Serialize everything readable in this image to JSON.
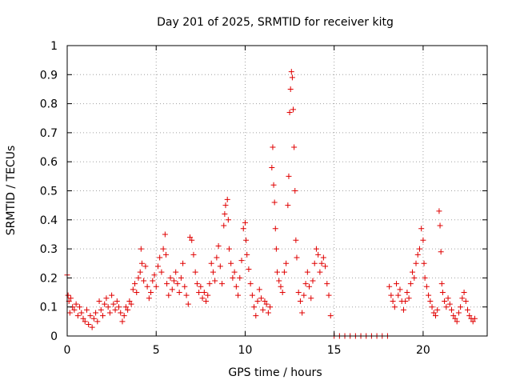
{
  "chart_data": {
    "type": "scatter",
    "title": "Day 201 of 2025, SRMTID for receiver kitg",
    "xlabel": "GPS time / hours",
    "ylabel": "SRMTID / TECUs",
    "xlim": [
      0,
      23.6
    ],
    "ylim": [
      0,
      1
    ],
    "xticks": [
      0,
      5,
      10,
      15,
      20
    ],
    "yticks": [
      0,
      0.1,
      0.2,
      0.3,
      0.4,
      0.5,
      0.6,
      0.7,
      0.8,
      0.9,
      1
    ],
    "xtick_labels": [
      "0",
      "5",
      "10",
      "15",
      "20"
    ],
    "ytick_labels": [
      "0",
      "0.1",
      "0.2",
      "0.3",
      "0.4",
      "0.5",
      "0.6",
      "0.7",
      "0.8",
      "0.9",
      "1"
    ],
    "marker": "+",
    "color": "#e00000",
    "grid": true,
    "series": [
      {
        "name": "SRMTID",
        "points": [
          [
            0.0,
            0.21
          ],
          [
            0.05,
            0.14
          ],
          [
            0.1,
            0.12
          ],
          [
            0.15,
            0.08
          ],
          [
            0.2,
            0.13
          ],
          [
            0.3,
            0.1
          ],
          [
            0.4,
            0.09
          ],
          [
            0.5,
            0.11
          ],
          [
            0.6,
            0.07
          ],
          [
            0.7,
            0.1
          ],
          [
            0.8,
            0.08
          ],
          [
            0.9,
            0.06
          ],
          [
            1.0,
            0.05
          ],
          [
            1.1,
            0.09
          ],
          [
            1.2,
            0.04
          ],
          [
            1.3,
            0.07
          ],
          [
            1.4,
            0.03
          ],
          [
            1.5,
            0.06
          ],
          [
            1.6,
            0.08
          ],
          [
            1.7,
            0.05
          ],
          [
            1.8,
            0.12
          ],
          [
            1.9,
            0.09
          ],
          [
            2.0,
            0.07
          ],
          [
            2.1,
            0.11
          ],
          [
            2.2,
            0.13
          ],
          [
            2.3,
            0.1
          ],
          [
            2.4,
            0.08
          ],
          [
            2.5,
            0.14
          ],
          [
            2.6,
            0.11
          ],
          [
            2.7,
            0.09
          ],
          [
            2.8,
            0.12
          ],
          [
            2.9,
            0.1
          ],
          [
            3.0,
            0.08
          ],
          [
            3.1,
            0.05
          ],
          [
            3.2,
            0.07
          ],
          [
            3.3,
            0.1
          ],
          [
            3.4,
            0.09
          ],
          [
            3.5,
            0.12
          ],
          [
            3.6,
            0.11
          ],
          [
            3.7,
            0.16
          ],
          [
            3.8,
            0.18
          ],
          [
            3.9,
            0.15
          ],
          [
            4.0,
            0.2
          ],
          [
            4.1,
            0.22
          ],
          [
            4.15,
            0.3
          ],
          [
            4.2,
            0.25
          ],
          [
            4.3,
            0.19
          ],
          [
            4.4,
            0.24
          ],
          [
            4.5,
            0.17
          ],
          [
            4.6,
            0.13
          ],
          [
            4.7,
            0.15
          ],
          [
            4.8,
            0.19
          ],
          [
            4.9,
            0.21
          ],
          [
            5.0,
            0.17
          ],
          [
            5.1,
            0.24
          ],
          [
            5.2,
            0.27
          ],
          [
            5.3,
            0.22
          ],
          [
            5.4,
            0.3
          ],
          [
            5.5,
            0.35
          ],
          [
            5.55,
            0.28
          ],
          [
            5.6,
            0.18
          ],
          [
            5.7,
            0.14
          ],
          [
            5.8,
            0.2
          ],
          [
            5.9,
            0.16
          ],
          [
            6.0,
            0.19
          ],
          [
            6.1,
            0.22
          ],
          [
            6.2,
            0.18
          ],
          [
            6.3,
            0.15
          ],
          [
            6.4,
            0.2
          ],
          [
            6.5,
            0.25
          ],
          [
            6.6,
            0.17
          ],
          [
            6.7,
            0.14
          ],
          [
            6.8,
            0.11
          ],
          [
            6.9,
            0.34
          ],
          [
            7.0,
            0.33
          ],
          [
            7.1,
            0.28
          ],
          [
            7.2,
            0.22
          ],
          [
            7.3,
            0.18
          ],
          [
            7.4,
            0.15
          ],
          [
            7.5,
            0.17
          ],
          [
            7.6,
            0.13
          ],
          [
            7.7,
            0.15
          ],
          [
            7.8,
            0.12
          ],
          [
            7.9,
            0.14
          ],
          [
            8.0,
            0.18
          ],
          [
            8.1,
            0.25
          ],
          [
            8.2,
            0.22
          ],
          [
            8.3,
            0.19
          ],
          [
            8.4,
            0.27
          ],
          [
            8.5,
            0.31
          ],
          [
            8.6,
            0.24
          ],
          [
            8.7,
            0.18
          ],
          [
            8.8,
            0.38
          ],
          [
            8.85,
            0.42
          ],
          [
            8.9,
            0.45
          ],
          [
            9.0,
            0.47
          ],
          [
            9.05,
            0.4
          ],
          [
            9.1,
            0.3
          ],
          [
            9.2,
            0.25
          ],
          [
            9.3,
            0.2
          ],
          [
            9.4,
            0.22
          ],
          [
            9.5,
            0.17
          ],
          [
            9.6,
            0.14
          ],
          [
            9.7,
            0.2
          ],
          [
            9.8,
            0.26
          ],
          [
            9.9,
            0.37
          ],
          [
            10.0,
            0.39
          ],
          [
            10.05,
            0.33
          ],
          [
            10.1,
            0.28
          ],
          [
            10.2,
            0.23
          ],
          [
            10.3,
            0.18
          ],
          [
            10.4,
            0.14
          ],
          [
            10.5,
            0.1
          ],
          [
            10.6,
            0.07
          ],
          [
            10.7,
            0.12
          ],
          [
            10.8,
            0.16
          ],
          [
            10.9,
            0.13
          ],
          [
            11.0,
            0.09
          ],
          [
            11.1,
            0.12
          ],
          [
            11.2,
            0.11
          ],
          [
            11.3,
            0.08
          ],
          [
            11.4,
            0.1
          ],
          [
            11.5,
            0.58
          ],
          [
            11.55,
            0.65
          ],
          [
            11.6,
            0.52
          ],
          [
            11.65,
            0.46
          ],
          [
            11.7,
            0.37
          ],
          [
            11.75,
            0.3
          ],
          [
            11.8,
            0.22
          ],
          [
            11.9,
            0.19
          ],
          [
            12.0,
            0.17
          ],
          [
            12.1,
            0.15
          ],
          [
            12.2,
            0.22
          ],
          [
            12.3,
            0.25
          ],
          [
            12.4,
            0.45
          ],
          [
            12.45,
            0.55
          ],
          [
            12.5,
            0.77
          ],
          [
            12.55,
            0.85
          ],
          [
            12.6,
            0.91
          ],
          [
            12.65,
            0.89
          ],
          [
            12.7,
            0.78
          ],
          [
            12.75,
            0.65
          ],
          [
            12.8,
            0.5
          ],
          [
            12.85,
            0.33
          ],
          [
            12.9,
            0.27
          ],
          [
            13.0,
            0.15
          ],
          [
            13.1,
            0.12
          ],
          [
            13.2,
            0.08
          ],
          [
            13.3,
            0.14
          ],
          [
            13.4,
            0.18
          ],
          [
            13.5,
            0.22
          ],
          [
            13.6,
            0.17
          ],
          [
            13.7,
            0.13
          ],
          [
            13.8,
            0.19
          ],
          [
            13.9,
            0.25
          ],
          [
            14.0,
            0.3
          ],
          [
            14.1,
            0.28
          ],
          [
            14.2,
            0.22
          ],
          [
            14.3,
            0.25
          ],
          [
            14.4,
            0.27
          ],
          [
            14.5,
            0.24
          ],
          [
            14.6,
            0.18
          ],
          [
            14.7,
            0.14
          ],
          [
            14.8,
            0.07
          ],
          [
            15.0,
            0.0
          ],
          [
            15.3,
            0.0
          ],
          [
            15.6,
            0.0
          ],
          [
            15.9,
            0.0
          ],
          [
            16.2,
            0.0
          ],
          [
            16.5,
            0.0
          ],
          [
            16.8,
            0.0
          ],
          [
            17.1,
            0.0
          ],
          [
            17.4,
            0.0
          ],
          [
            17.7,
            0.0
          ],
          [
            18.0,
            0.0
          ],
          [
            18.1,
            0.17
          ],
          [
            18.2,
            0.14
          ],
          [
            18.3,
            0.12
          ],
          [
            18.4,
            0.1
          ],
          [
            18.5,
            0.18
          ],
          [
            18.6,
            0.14
          ],
          [
            18.7,
            0.16
          ],
          [
            18.8,
            0.12
          ],
          [
            18.9,
            0.09
          ],
          [
            19.0,
            0.12
          ],
          [
            19.1,
            0.15
          ],
          [
            19.2,
            0.13
          ],
          [
            19.3,
            0.18
          ],
          [
            19.4,
            0.22
          ],
          [
            19.5,
            0.2
          ],
          [
            19.6,
            0.25
          ],
          [
            19.7,
            0.28
          ],
          [
            19.8,
            0.3
          ],
          [
            19.9,
            0.37
          ],
          [
            20.0,
            0.33
          ],
          [
            20.05,
            0.25
          ],
          [
            20.1,
            0.2
          ],
          [
            20.2,
            0.17
          ],
          [
            20.3,
            0.14
          ],
          [
            20.4,
            0.12
          ],
          [
            20.5,
            0.1
          ],
          [
            20.6,
            0.08
          ],
          [
            20.7,
            0.07
          ],
          [
            20.8,
            0.09
          ],
          [
            20.9,
            0.43
          ],
          [
            20.95,
            0.38
          ],
          [
            21.0,
            0.29
          ],
          [
            21.05,
            0.18
          ],
          [
            21.1,
            0.15
          ],
          [
            21.2,
            0.12
          ],
          [
            21.3,
            0.1
          ],
          [
            21.4,
            0.13
          ],
          [
            21.5,
            0.11
          ],
          [
            21.6,
            0.09
          ],
          [
            21.7,
            0.07
          ],
          [
            21.8,
            0.06
          ],
          [
            21.9,
            0.05
          ],
          [
            22.0,
            0.08
          ],
          [
            22.1,
            0.1
          ],
          [
            22.2,
            0.13
          ],
          [
            22.3,
            0.15
          ],
          [
            22.4,
            0.12
          ],
          [
            22.5,
            0.09
          ],
          [
            22.6,
            0.07
          ],
          [
            22.7,
            0.06
          ],
          [
            22.8,
            0.05
          ],
          [
            22.9,
            0.06
          ]
        ]
      }
    ]
  }
}
